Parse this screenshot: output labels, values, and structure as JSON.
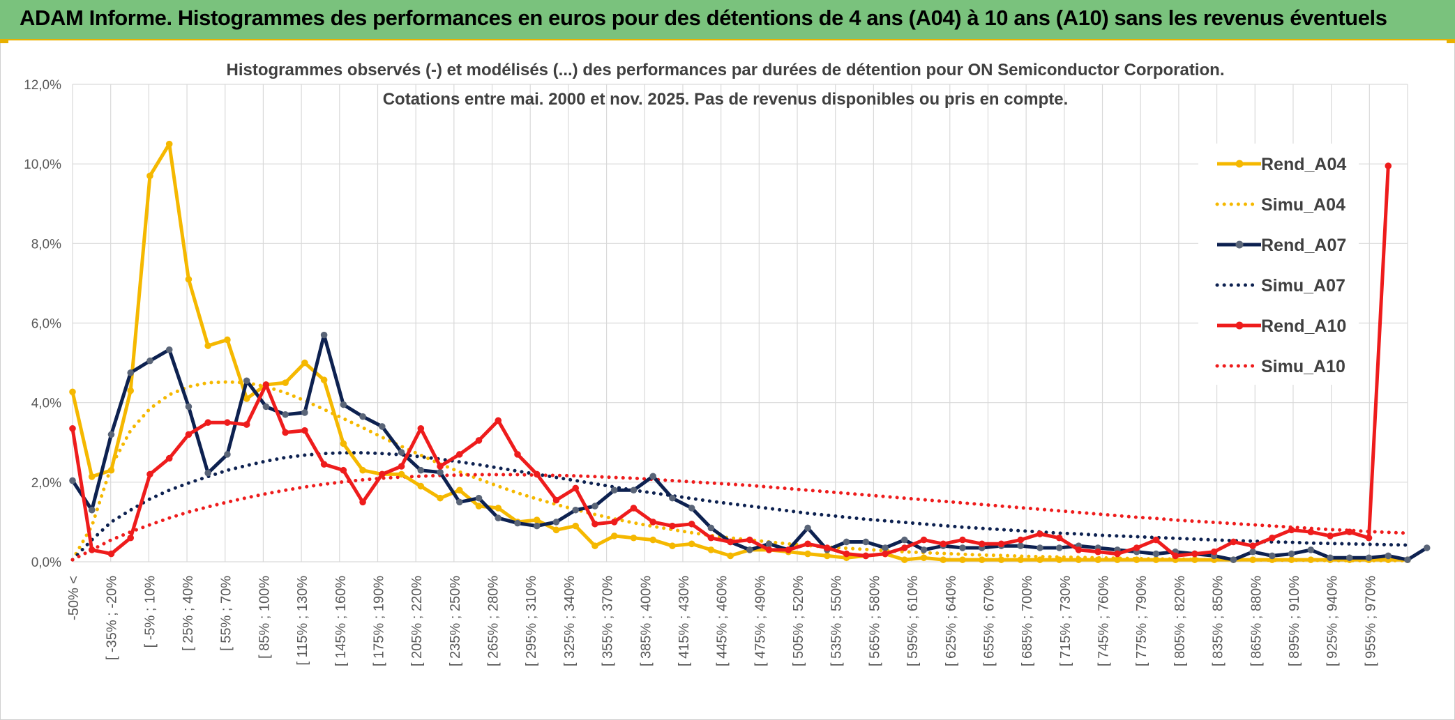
{
  "banner": {
    "title": "ADAM Informe. Histogrammes des performances en euros pour des détentions de 4 ans (A04) à 10 ans (A10) sans les revenus éventuels"
  },
  "colors": {
    "banner_bg": "#7ac27d",
    "a04": "#f5b800",
    "a07": "#0d2150",
    "a07_marker": "#5a6578",
    "a10": "#ee1c1c",
    "grid": "#d9d9d9",
    "axis_text": "#595959",
    "title_text": "#404040"
  },
  "chart_data": {
    "type": "line",
    "title": [
      "Histogrammes observés (-) et modélisés (...) des performances par durées de détention pour ON Semiconductor Corporation.",
      "Cotations entre mai. 2000 et nov. 2025. Pas de revenus disponibles ou pris en compte."
    ],
    "xlabel": "",
    "ylabel": "",
    "ylim": [
      0,
      12
    ],
    "yticks": [
      "0,0%",
      "2,0%",
      "4,0%",
      "6,0%",
      "8,0%",
      "10,0%",
      "12,0%"
    ],
    "grid": true,
    "legend_position": "right",
    "x_labels": [
      "-50% <",
      "[ -35% ; -20%",
      "[ -5% ; 10%",
      "[ 25% ; 40%",
      "[ 55% ; 70%",
      "[ 85% ; 100%",
      "[ 115% ; 130%",
      "[ 145% ; 160%",
      "[ 175% ; 190%",
      "[ 205% ; 220%",
      "[ 235% ; 250%",
      "[ 265% ; 280%",
      "[ 295% ; 310%",
      "[ 325% ; 340%",
      "[ 355% ; 370%",
      "[ 385% ; 400%",
      "[ 415% ; 430%",
      "[ 445% ; 460%",
      "[ 475% ; 490%",
      "[ 505% ; 520%",
      "[ 535% ; 550%",
      "[ 565% ; 580%",
      "[ 595% ; 610%",
      "[ 625% ; 640%",
      "[ 655% ; 670%",
      "[ 685% ; 700%",
      "[ 715% ; 730%",
      "[ 745% ; 760%",
      "[ 775% ; 790%",
      "[ 805% ; 820%",
      "[ 835% ; 850%",
      "[ 865% ; 880%",
      "[ 895% ; 910%",
      "[ 925% ; 940%",
      "[ 955% ; 970%"
    ],
    "series": [
      {
        "name": "Rend_A04",
        "style": "solid",
        "color": "#f5b800",
        "values": [
          4.27,
          2.14,
          2.3,
          4.3,
          9.7,
          10.5,
          7.1,
          5.43,
          5.58,
          4.1,
          4.45,
          4.5,
          5.0,
          4.57,
          2.97,
          2.3,
          2.2,
          2.2,
          1.9,
          1.6,
          1.8,
          1.4,
          1.35,
          1.0,
          1.05,
          0.8,
          0.9,
          0.4,
          0.65,
          0.6,
          0.55,
          0.4,
          0.45,
          0.3,
          0.15,
          0.3,
          0.3,
          0.25,
          0.2,
          0.15,
          0.1,
          0.15,
          0.2,
          0.05,
          0.1,
          0.05,
          0.05,
          0.05,
          0.05,
          0.05,
          0.05,
          0.05,
          0.05,
          0.05,
          0.05,
          0.05,
          0.05,
          0.05,
          0.05,
          0.05,
          0.05,
          0.05,
          0.05,
          0.05,
          0.05,
          0.05,
          0.05,
          0.05,
          0.05,
          0.05
        ]
      },
      {
        "name": "Simu_A04",
        "style": "dotted",
        "color": "#f5b800",
        "values": [
          0.05,
          0.9,
          2.4,
          3.3,
          3.85,
          4.2,
          4.4,
          4.5,
          4.52,
          4.5,
          4.4,
          4.25,
          4.05,
          3.83,
          3.6,
          3.37,
          3.13,
          2.9,
          2.68,
          2.46,
          2.26,
          2.08,
          1.9,
          1.73,
          1.58,
          1.44,
          1.31,
          1.19,
          1.08,
          0.98,
          0.89,
          0.81,
          0.73,
          0.66,
          0.6,
          0.55,
          0.5,
          0.45,
          0.41,
          0.37,
          0.34,
          0.31,
          0.28,
          0.25,
          0.23,
          0.21,
          0.19,
          0.17,
          0.16,
          0.14,
          0.13,
          0.12,
          0.11,
          0.1,
          0.09,
          0.08,
          0.07,
          0.07,
          0.06,
          0.05,
          0.05,
          0.05,
          0.04,
          0.04,
          0.04,
          0.03,
          0.03,
          0.03,
          0.03,
          0.03
        ]
      },
      {
        "name": "Rend_A07",
        "style": "solid",
        "color": "#0d2150",
        "values": [
          2.04,
          1.3,
          3.2,
          4.75,
          5.05,
          5.33,
          3.9,
          2.23,
          2.7,
          4.55,
          3.9,
          3.7,
          3.75,
          5.7,
          3.95,
          3.65,
          3.4,
          2.75,
          2.3,
          2.25,
          1.5,
          1.6,
          1.1,
          0.97,
          0.9,
          1.0,
          1.3,
          1.4,
          1.8,
          1.8,
          2.15,
          1.6,
          1.35,
          0.85,
          0.5,
          0.3,
          0.45,
          0.3,
          0.85,
          0.3,
          0.5,
          0.5,
          0.35,
          0.55,
          0.3,
          0.4,
          0.35,
          0.35,
          0.4,
          0.4,
          0.35,
          0.35,
          0.4,
          0.35,
          0.3,
          0.25,
          0.2,
          0.25,
          0.2,
          0.15,
          0.05,
          0.25,
          0.15,
          0.2,
          0.3,
          0.1,
          0.1,
          0.1,
          0.15,
          0.05,
          0.35
        ]
      },
      {
        "name": "Simu_A07",
        "style": "dotted",
        "color": "#0d2150",
        "values": [
          0.05,
          0.55,
          1.0,
          1.3,
          1.58,
          1.8,
          1.98,
          2.14,
          2.3,
          2.42,
          2.53,
          2.62,
          2.68,
          2.72,
          2.74,
          2.74,
          2.72,
          2.69,
          2.64,
          2.58,
          2.51,
          2.44,
          2.36,
          2.28,
          2.2,
          2.12,
          2.04,
          1.96,
          1.88,
          1.8,
          1.73,
          1.66,
          1.59,
          1.52,
          1.46,
          1.4,
          1.34,
          1.28,
          1.22,
          1.17,
          1.12,
          1.07,
          1.03,
          0.99,
          0.95,
          0.91,
          0.87,
          0.84,
          0.81,
          0.78,
          0.75,
          0.72,
          0.7,
          0.67,
          0.65,
          0.63,
          0.61,
          0.59,
          0.57,
          0.55,
          0.53,
          0.52,
          0.5,
          0.49,
          0.47,
          0.46,
          0.45,
          0.44,
          0.43,
          0.42
        ]
      },
      {
        "name": "Rend_A10",
        "style": "solid",
        "color": "#ee1c1c",
        "values": [
          3.35,
          0.3,
          0.2,
          0.6,
          2.2,
          2.6,
          3.2,
          3.5,
          3.5,
          3.45,
          4.45,
          3.25,
          3.3,
          2.45,
          2.3,
          1.5,
          2.2,
          2.4,
          3.35,
          2.4,
          2.7,
          3.05,
          3.55,
          2.7,
          2.2,
          1.55,
          1.85,
          0.95,
          1.0,
          1.35,
          1.0,
          0.9,
          0.95,
          0.6,
          0.5,
          0.55,
          0.3,
          0.3,
          0.45,
          0.35,
          0.2,
          0.15,
          0.2,
          0.35,
          0.55,
          0.45,
          0.55,
          0.45,
          0.45,
          0.55,
          0.7,
          0.6,
          0.3,
          0.25,
          0.2,
          0.35,
          0.55,
          0.15,
          0.2,
          0.25,
          0.5,
          0.4,
          0.6,
          0.8,
          0.75,
          0.65,
          0.75,
          0.6,
          9.95
        ]
      },
      {
        "name": "Simu_A10",
        "style": "dotted",
        "color": "#ee1c1c",
        "values": [
          0.05,
          0.3,
          0.55,
          0.75,
          0.93,
          1.1,
          1.25,
          1.38,
          1.5,
          1.61,
          1.71,
          1.8,
          1.88,
          1.95,
          2.01,
          2.06,
          2.1,
          2.13,
          2.15,
          2.17,
          2.18,
          2.19,
          2.19,
          2.19,
          2.18,
          2.17,
          2.16,
          2.14,
          2.12,
          2.1,
          2.07,
          2.04,
          2.01,
          1.98,
          1.95,
          1.92,
          1.88,
          1.84,
          1.8,
          1.76,
          1.72,
          1.68,
          1.64,
          1.6,
          1.56,
          1.52,
          1.48,
          1.44,
          1.4,
          1.36,
          1.32,
          1.28,
          1.24,
          1.2,
          1.16,
          1.12,
          1.09,
          1.05,
          1.02,
          0.99,
          0.96,
          0.93,
          0.9,
          0.87,
          0.84,
          0.81,
          0.79,
          0.76,
          0.74,
          0.72
        ]
      }
    ]
  }
}
